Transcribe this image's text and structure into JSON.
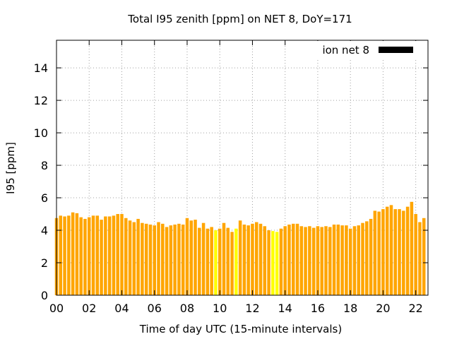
{
  "chart_data": {
    "type": "bar",
    "title": "Total I95 zenith [ppm] on NET 8, DoY=171",
    "xlabel": "Time of day UTC (15-minute intervals)",
    "ylabel": "I95 [ppm]",
    "xlim": [
      0,
      22.75
    ],
    "ylim": [
      0,
      15.7
    ],
    "bar_interval_hours": 0.25,
    "x_ticks": [
      "00",
      "02",
      "04",
      "06",
      "08",
      "10",
      "12",
      "14",
      "16",
      "18",
      "20",
      "22"
    ],
    "y_ticks": [
      "0",
      "2",
      "4",
      "6",
      "8",
      "10",
      "12",
      "14"
    ],
    "grid": true,
    "legend": {
      "label": "ion net 8",
      "position": "top-right",
      "color": "#000000"
    },
    "colors": {
      "normal": "#ffa500",
      "highlight": "#ffff00"
    },
    "series": [
      {
        "name": "ion net 8",
        "values": [
          4.75,
          4.9,
          4.85,
          4.9,
          5.1,
          5.05,
          4.8,
          4.7,
          4.8,
          4.9,
          4.9,
          4.65,
          4.85,
          4.85,
          4.9,
          5.0,
          5.0,
          4.75,
          4.6,
          4.5,
          4.7,
          4.45,
          4.4,
          4.35,
          4.3,
          4.5,
          4.4,
          4.2,
          4.3,
          4.35,
          4.4,
          4.35,
          4.75,
          4.6,
          4.65,
          4.15,
          4.45,
          4.1,
          4.2,
          4.0,
          4.1,
          4.45,
          4.15,
          3.9,
          4.1,
          4.6,
          4.35,
          4.3,
          4.4,
          4.5,
          4.4,
          4.25,
          4.0,
          3.95,
          3.9,
          4.1,
          4.25,
          4.35,
          4.4,
          4.4,
          4.25,
          4.2,
          4.25,
          4.15,
          4.25,
          4.2,
          4.25,
          4.2,
          4.35,
          4.35,
          4.3,
          4.3,
          4.1,
          4.25,
          4.3,
          4.45,
          4.55,
          4.7,
          5.2,
          5.15,
          5.3,
          5.45,
          5.55,
          5.3,
          5.3,
          5.2,
          5.45,
          5.75,
          5.0,
          4.5,
          4.75
        ],
        "highlight_indices": [
          39,
          44,
          53,
          54
        ]
      }
    ]
  }
}
